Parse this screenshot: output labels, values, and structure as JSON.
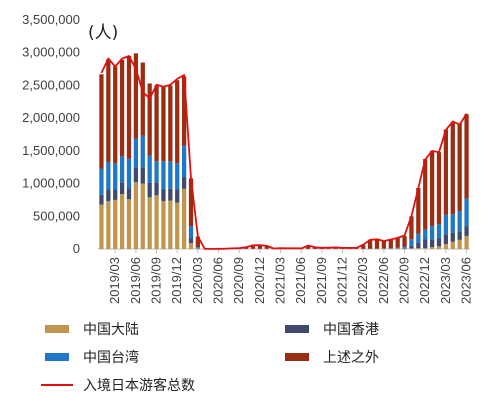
{
  "chart_data": {
    "type": "bar",
    "stacked": true,
    "unit_label": "(人)",
    "title": "",
    "xlabel": "",
    "ylabel": "",
    "ylim": [
      0,
      3500000
    ],
    "y_ticks": [
      0,
      500000,
      1000000,
      1500000,
      2000000,
      2500000,
      3000000,
      3500000
    ],
    "y_tick_labels": [
      "0",
      "500,000",
      "1,000,000",
      "1,500,000",
      "2,000,000",
      "2,500,000",
      "3,000,000",
      "3,500,000"
    ],
    "x_tick_labels": [
      "2019/03",
      "2019/06",
      "2019/09",
      "2019/12",
      "2020/03",
      "2020/06",
      "2020/09",
      "2020/12",
      "2021/03",
      "2021/06",
      "2021/09",
      "2021/12",
      "2022/03",
      "2022/06",
      "2022/09",
      "2022/12",
      "2023/03",
      "2023/06"
    ],
    "x_tick_every": 3,
    "categories": [
      "2019/01",
      "2019/02",
      "2019/03",
      "2019/04",
      "2019/05",
      "2019/06",
      "2019/07",
      "2019/08",
      "2019/09",
      "2019/10",
      "2019/11",
      "2019/12",
      "2020/01",
      "2020/02",
      "2020/03",
      "2020/04",
      "2020/05",
      "2020/06",
      "2020/07",
      "2020/08",
      "2020/09",
      "2020/10",
      "2020/11",
      "2020/12",
      "2021/01",
      "2021/02",
      "2021/03",
      "2021/04",
      "2021/05",
      "2021/06",
      "2021/07",
      "2021/08",
      "2021/09",
      "2021/10",
      "2021/11",
      "2021/12",
      "2022/01",
      "2022/02",
      "2022/03",
      "2022/04",
      "2022/05",
      "2022/06",
      "2022/07",
      "2022/08",
      "2022/09",
      "2022/10",
      "2022/11",
      "2022/12",
      "2023/01",
      "2023/02",
      "2023/03",
      "2023/04",
      "2023/05",
      "2023/06"
    ],
    "series": [
      {
        "name": "中国大陆",
        "color": "#C09550",
        "values": [
          680000,
          730000,
          750000,
          840000,
          760000,
          1020000,
          1000000,
          790000,
          820000,
          730000,
          740000,
          710000,
          920000,
          90000,
          10000,
          1000,
          1000,
          1000,
          1000,
          1000,
          1000,
          1000,
          2000,
          1000,
          2000,
          1000,
          1000,
          1000,
          1000,
          1000,
          1000,
          1000,
          1000,
          1000,
          1000,
          1000,
          1000,
          1000,
          1000,
          2000,
          3000,
          5000,
          5000,
          7000,
          8000,
          10000,
          12000,
          15000,
          30000,
          40000,
          75000,
          110000,
          140000,
          200000
        ]
      },
      {
        "name": "中国香港",
        "color": "#3F4A6E",
        "values": [
          150000,
          180000,
          160000,
          180000,
          170000,
          220000,
          250000,
          220000,
          200000,
          190000,
          180000,
          200000,
          180000,
          70000,
          10000,
          1000,
          1000,
          1000,
          1000,
          1000,
          1000,
          1000,
          2000,
          1000,
          2000,
          1000,
          1000,
          1000,
          1000,
          1000,
          1000,
          1000,
          1000,
          1000,
          1000,
          1000,
          1000,
          1000,
          1000,
          1000,
          2000,
          2000,
          3000,
          5000,
          10000,
          40000,
          90000,
          130000,
          120000,
          120000,
          150000,
          140000,
          130000,
          150000
        ]
      },
      {
        "name": "中国台湾",
        "color": "#1F77C8",
        "values": [
          400000,
          420000,
          400000,
          400000,
          450000,
          450000,
          480000,
          420000,
          320000,
          420000,
          420000,
          400000,
          480000,
          190000,
          10000,
          1000,
          1000,
          1000,
          1000,
          1000,
          1000,
          1000,
          1000,
          1000,
          1000,
          1000,
          1000,
          1000,
          1000,
          1000,
          1000,
          1000,
          1000,
          1000,
          1000,
          1000,
          1000,
          1000,
          1000,
          2000,
          2000,
          3000,
          5000,
          8000,
          20000,
          100000,
          130000,
          150000,
          200000,
          220000,
          300000,
          280000,
          310000,
          420000
        ]
      },
      {
        "name": "上述之外",
        "color": "#9B2D12",
        "values": [
          1440000,
          1570000,
          1480000,
          1470000,
          1570000,
          1300000,
          1120000,
          1100000,
          1160000,
          1140000,
          1160000,
          1270000,
          1060000,
          730000,
          160000,
          2000,
          2000,
          4000,
          6000,
          8000,
          15000,
          25000,
          50000,
          55000,
          40000,
          5000,
          10000,
          8000,
          4000,
          6000,
          40000,
          20000,
          15000,
          18000,
          20000,
          12000,
          15000,
          15000,
          60000,
          135000,
          140000,
          110000,
          130000,
          150000,
          160000,
          350000,
          700000,
          1080000,
          1150000,
          1100000,
          1300000,
          1400000,
          1340000,
          1290000
        ]
      },
      {
        "name": "入境日本游客总数",
        "type": "line",
        "color": "#E01010",
        "values": [
          2690000,
          2910000,
          2790000,
          2910000,
          2950000,
          2750000,
          2400000,
          2300000,
          2510000,
          2480000,
          2510000,
          2600000,
          2660000,
          1080000,
          190000,
          3000,
          2000,
          3000,
          4000,
          9000,
          14000,
          28000,
          57000,
          59000,
          47000,
          7000,
          12000,
          11000,
          10000,
          9000,
          52000,
          26000,
          18000,
          22000,
          24000,
          18000,
          17000,
          17000,
          66000,
          140000,
          148000,
          120000,
          145000,
          170000,
          210000,
          500000,
          930000,
          1370000,
          1500000,
          1480000,
          1820000,
          1950000,
          1900000,
          2070000
        ]
      }
    ],
    "legend_position": "bottom",
    "grid": false
  },
  "legend": {
    "items": [
      {
        "label": "中国大陆",
        "color": "#C09550",
        "kind": "box"
      },
      {
        "label": "中国香港",
        "color": "#3F4A6E",
        "kind": "box"
      },
      {
        "label": "中国台湾",
        "color": "#1F77C8",
        "kind": "box"
      },
      {
        "label": "上述之外",
        "color": "#9B2D12",
        "kind": "box"
      },
      {
        "label": "入境日本游客总数",
        "color": "#E01010",
        "kind": "line"
      }
    ]
  }
}
